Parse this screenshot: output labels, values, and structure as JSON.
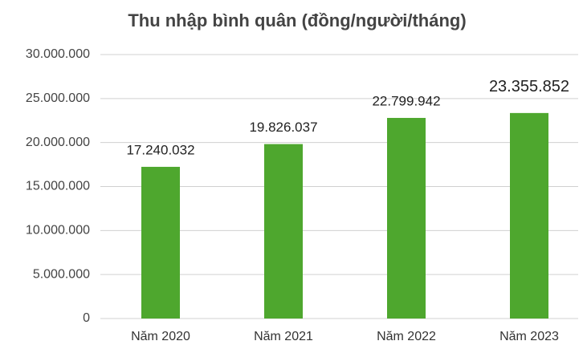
{
  "chart_data": {
    "type": "bar",
    "title": "Thu nhập bình quân (đồng/người/tháng)",
    "categories": [
      "Năm 2020",
      "Năm 2021",
      "Năm 2022",
      "Năm 2023"
    ],
    "values": [
      17240032,
      19826037,
      22799942,
      23355852
    ],
    "value_labels": [
      "17.240.032",
      "19.826.037",
      "22.799.942",
      "23.355.852"
    ],
    "color": "#4ea72e",
    "ylim": [
      0,
      30000000
    ],
    "yticks": [
      0,
      {
        "value": 5000000,
        "label": "5.000.000"
      },
      {
        "value": 10000000,
        "label": "10.000.000"
      },
      {
        "value": 15000000,
        "label": "15.000.000"
      },
      {
        "value": 20000000,
        "label": "20.000.000"
      },
      {
        "value": 25000000,
        "label": "25.000.000"
      },
      {
        "value": 30000000,
        "label": "30.000.000"
      }
    ],
    "grid": true
  }
}
